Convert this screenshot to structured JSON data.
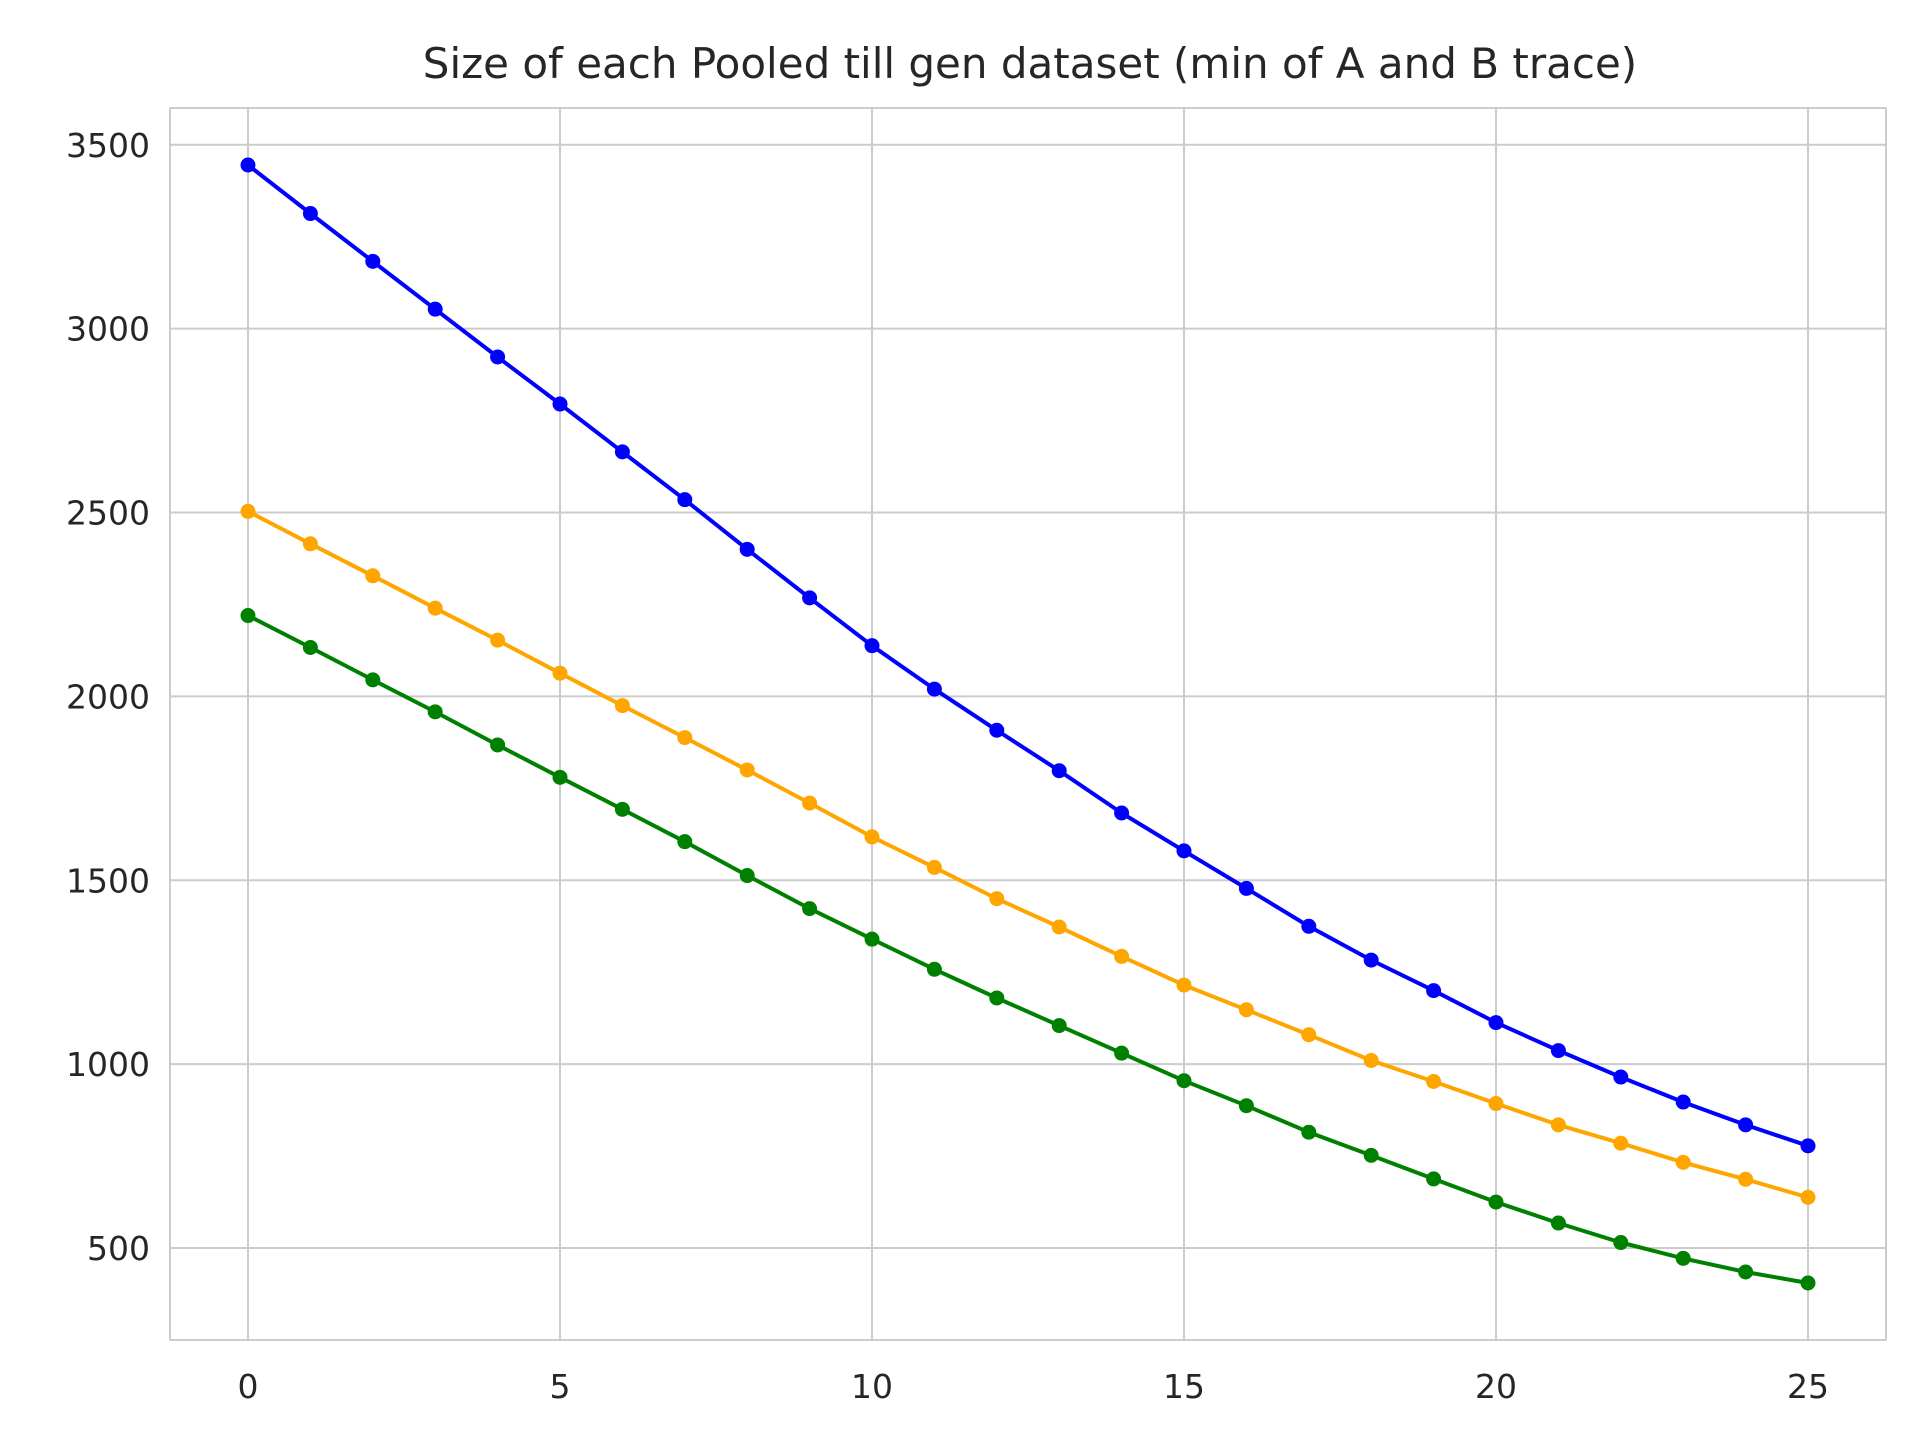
{
  "chart_data": {
    "type": "line",
    "title": "Size of each Pooled till gen dataset (min of A and B trace)",
    "xlabel": "",
    "ylabel": "",
    "xlim": [
      -1.25,
      26.25
    ],
    "ylim": [
      250,
      3600
    ],
    "xticks": [
      0,
      5,
      10,
      15,
      20,
      25
    ],
    "yticks": [
      500,
      1000,
      1500,
      2000,
      2500,
      3000,
      3500
    ],
    "grid": true,
    "legend": "none",
    "x": [
      0,
      1,
      2,
      3,
      4,
      5,
      6,
      7,
      8,
      9,
      10,
      11,
      12,
      13,
      14,
      15,
      16,
      17,
      18,
      19,
      20,
      21,
      22,
      23,
      24,
      25
    ],
    "series": [
      {
        "color": "#0000ff",
        "values": [
          3445,
          3313,
          3183,
          3053,
          2923,
          2795,
          2665,
          2535,
          2400,
          2268,
          2138,
          2020,
          1908,
          1798,
          1683,
          1580,
          1478,
          1375,
          1283,
          1200,
          1113,
          1037,
          965,
          897,
          835,
          778
        ]
      },
      {
        "color": "#ffa500",
        "values": [
          2503,
          2415,
          2328,
          2240,
          2153,
          2063,
          1975,
          1888,
          1800,
          1710,
          1618,
          1535,
          1450,
          1373,
          1293,
          1215,
          1148,
          1080,
          1010,
          953,
          893,
          835,
          785,
          733,
          687,
          638
        ]
      },
      {
        "color": "#008000",
        "values": [
          2220,
          2133,
          2045,
          1958,
          1868,
          1780,
          1693,
          1605,
          1513,
          1423,
          1340,
          1258,
          1180,
          1105,
          1030,
          955,
          887,
          815,
          752,
          688,
          625,
          568,
          515,
          472,
          435,
          405
        ]
      }
    ]
  }
}
